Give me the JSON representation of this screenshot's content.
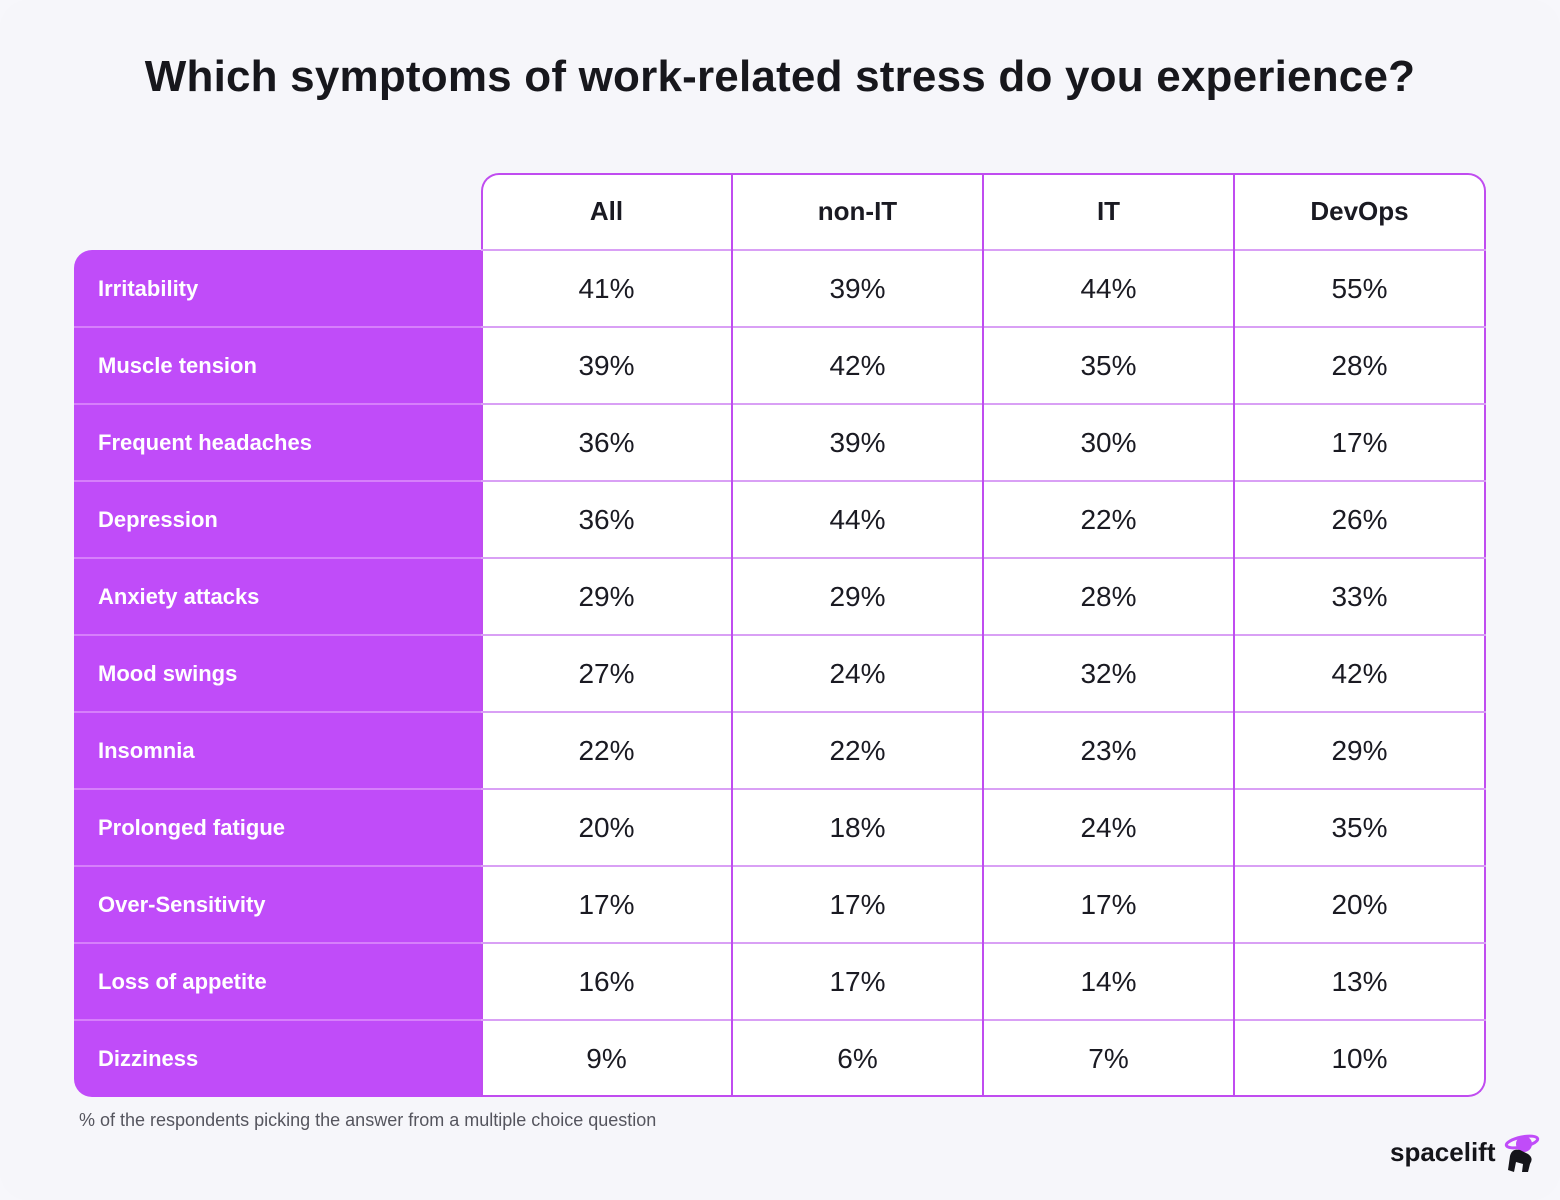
{
  "title": "Which symptoms of work-related stress do you experience?",
  "footnote": "% of the respondents picking the answer from a multiple choice question",
  "brand": {
    "name": "spacelift",
    "icon": "astronaut-planet-icon",
    "accent": "#c04cf9"
  },
  "colors": {
    "label_bg": "#c04cf9",
    "border": "#c04cf0",
    "text": "#1a1a22"
  },
  "chart_data": {
    "type": "table",
    "title": "Which symptoms of work-related stress do you experience?",
    "columns": [
      "All",
      "non-IT",
      "IT",
      "DevOps"
    ],
    "rows": [
      {
        "label": "Irritability",
        "values": [
          "41%",
          "39%",
          "44%",
          "55%"
        ]
      },
      {
        "label": "Muscle tension",
        "values": [
          "39%",
          "42%",
          "35%",
          "28%"
        ]
      },
      {
        "label": "Frequent headaches",
        "values": [
          "36%",
          "39%",
          "30%",
          "17%"
        ]
      },
      {
        "label": "Depression",
        "values": [
          "36%",
          "44%",
          "22%",
          "26%"
        ]
      },
      {
        "label": "Anxiety attacks",
        "values": [
          "29%",
          "29%",
          "28%",
          "33%"
        ]
      },
      {
        "label": "Mood swings",
        "values": [
          "27%",
          "24%",
          "32%",
          "42%"
        ]
      },
      {
        "label": "Insomnia",
        "values": [
          "22%",
          "22%",
          "23%",
          "29%"
        ]
      },
      {
        "label": "Prolonged fatigue",
        "values": [
          "20%",
          "18%",
          "24%",
          "35%"
        ]
      },
      {
        "label": "Over-Sensitivity",
        "values": [
          "17%",
          "17%",
          "17%",
          "20%"
        ]
      },
      {
        "label": "Loss of appetite",
        "values": [
          "16%",
          "17%",
          "14%",
          "13%"
        ]
      },
      {
        "label": "Dizziness",
        "values": [
          "9%",
          "6%",
          "7%",
          "10%"
        ]
      }
    ]
  }
}
